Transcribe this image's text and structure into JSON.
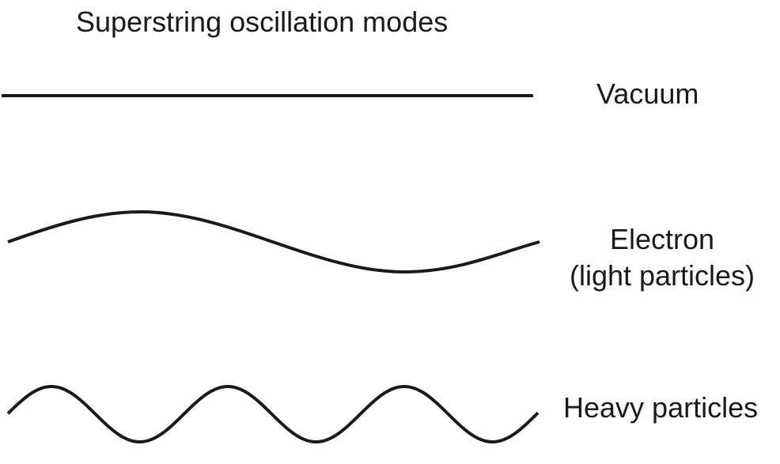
{
  "title": "Superstring oscillation modes",
  "modes": [
    {
      "label": "Vacuum"
    },
    {
      "label": "Electron",
      "sublabel": "(light particles)"
    },
    {
      "label": "Heavy particles"
    }
  ],
  "colors": {
    "stroke": "#1a1a1a",
    "background": "#ffffff"
  }
}
